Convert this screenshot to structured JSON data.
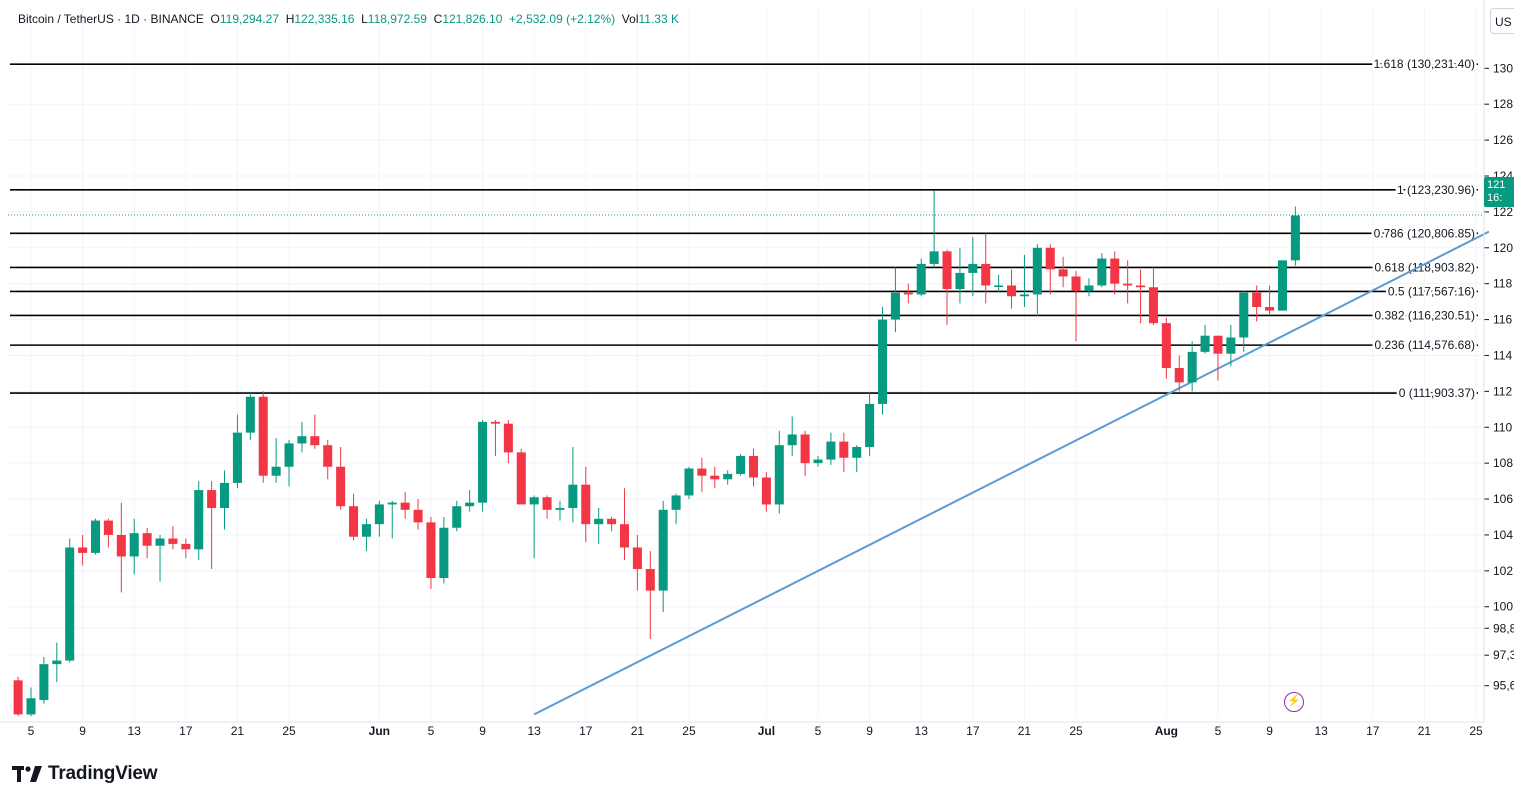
{
  "legend": {
    "symbol": "Bitcoin / TetherUS · 1D · BINANCE",
    "o_label": "O",
    "o_value": "119,294.27",
    "h_label": "H",
    "h_value": "122,335.16",
    "l_label": "L",
    "l_value": "118,972.59",
    "c_label": "C",
    "c_value": "121,826.10",
    "change": "+2,532.09 (+2.12%)",
    "vol_label": "Vol",
    "vol_value": "11.33 K"
  },
  "currency_button": "US",
  "price_tag": {
    "line1": "121",
    "line2": "16:"
  },
  "branding": {
    "name": "TradingView"
  },
  "colors": {
    "up": "#089981",
    "down": "#f23645",
    "trendline": "#5b9bd5",
    "fib_line": "#000000",
    "grid": "#f0f3fa"
  },
  "chart_data": {
    "type": "candlestick",
    "title": "Bitcoin / TetherUS · 1D · BINANCE",
    "xlabel": "",
    "ylabel": "",
    "ylim": [
      93800,
      131800
    ],
    "grid": true,
    "x_ticks": [
      "5",
      "9",
      "13",
      "17",
      "21",
      "25",
      "Jun",
      "5",
      "9",
      "13",
      "17",
      "21",
      "25",
      "Jul",
      "5",
      "9",
      "13",
      "17",
      "21",
      "25",
      "Aug",
      "5",
      "9",
      "13",
      "17",
      "21",
      "25"
    ],
    "y_ticks": [
      "130",
      "128",
      "126",
      "124",
      "122",
      "120",
      "118",
      "116",
      "114",
      "112",
      "110",
      "108",
      "106",
      "104",
      "102",
      "100",
      "98,8",
      "97,3",
      "95,6"
    ],
    "y_tick_values": [
      130000,
      128000,
      126000,
      124000,
      122000,
      120000,
      118000,
      116000,
      114000,
      112000,
      110000,
      108000,
      106000,
      104000,
      102000,
      100000,
      98800,
      97300,
      95600
    ],
    "candles": [
      {
        "date": "2025-05-04",
        "o": 95900,
        "h": 96100,
        "l": 93900,
        "c": 94000
      },
      {
        "date": "2025-05-05",
        "o": 94000,
        "h": 95500,
        "l": 93900,
        "c": 94900
      },
      {
        "date": "2025-05-06",
        "o": 94800,
        "h": 97200,
        "l": 94600,
        "c": 96800
      },
      {
        "date": "2025-05-07",
        "o": 96800,
        "h": 98000,
        "l": 95800,
        "c": 97000
      },
      {
        "date": "2025-05-08",
        "o": 97000,
        "h": 103800,
        "l": 96900,
        "c": 103300
      },
      {
        "date": "2025-05-09",
        "o": 103300,
        "h": 104000,
        "l": 102300,
        "c": 103000
      },
      {
        "date": "2025-05-10",
        "o": 103000,
        "h": 104900,
        "l": 102900,
        "c": 104800
      },
      {
        "date": "2025-05-11",
        "o": 104800,
        "h": 104900,
        "l": 103300,
        "c": 104000
      },
      {
        "date": "2025-05-12",
        "o": 104000,
        "h": 105800,
        "l": 100800,
        "c": 102800
      },
      {
        "date": "2025-05-13",
        "o": 102800,
        "h": 104900,
        "l": 101800,
        "c": 104100
      },
      {
        "date": "2025-05-14",
        "o": 104100,
        "h": 104400,
        "l": 102700,
        "c": 103400
      },
      {
        "date": "2025-05-15",
        "o": 103400,
        "h": 104000,
        "l": 101400,
        "c": 103800
      },
      {
        "date": "2025-05-16",
        "o": 103800,
        "h": 104500,
        "l": 103200,
        "c": 103500
      },
      {
        "date": "2025-05-17",
        "o": 103500,
        "h": 103800,
        "l": 102700,
        "c": 103200
      },
      {
        "date": "2025-05-18",
        "o": 103200,
        "h": 107000,
        "l": 102600,
        "c": 106500
      },
      {
        "date": "2025-05-19",
        "o": 106500,
        "h": 107000,
        "l": 102100,
        "c": 105500
      },
      {
        "date": "2025-05-20",
        "o": 105500,
        "h": 107600,
        "l": 104300,
        "c": 106900
      },
      {
        "date": "2025-05-21",
        "o": 106900,
        "h": 110700,
        "l": 106600,
        "c": 109700
      },
      {
        "date": "2025-05-22",
        "o": 109700,
        "h": 111900,
        "l": 109300,
        "c": 111700
      },
      {
        "date": "2025-05-23",
        "o": 111700,
        "h": 112000,
        "l": 106900,
        "c": 107300
      },
      {
        "date": "2025-05-24",
        "o": 107300,
        "h": 109400,
        "l": 106900,
        "c": 107800
      },
      {
        "date": "2025-05-25",
        "o": 107800,
        "h": 109300,
        "l": 106700,
        "c": 109100
      },
      {
        "date": "2025-05-26",
        "o": 109100,
        "h": 110300,
        "l": 108600,
        "c": 109500
      },
      {
        "date": "2025-05-27",
        "o": 109500,
        "h": 110700,
        "l": 108800,
        "c": 109000
      },
      {
        "date": "2025-05-28",
        "o": 109000,
        "h": 109300,
        "l": 107100,
        "c": 107800
      },
      {
        "date": "2025-05-29",
        "o": 107800,
        "h": 108900,
        "l": 105400,
        "c": 105600
      },
      {
        "date": "2025-05-30",
        "o": 105600,
        "h": 106300,
        "l": 103700,
        "c": 103900
      },
      {
        "date": "2025-05-31",
        "o": 103900,
        "h": 104900,
        "l": 103100,
        "c": 104600
      },
      {
        "date": "2025-06-01",
        "o": 104600,
        "h": 105900,
        "l": 103900,
        "c": 105700
      },
      {
        "date": "2025-06-02",
        "o": 105700,
        "h": 105900,
        "l": 103800,
        "c": 105800
      },
      {
        "date": "2025-06-03",
        "o": 105800,
        "h": 106400,
        "l": 104900,
        "c": 105400
      },
      {
        "date": "2025-06-04",
        "o": 105400,
        "h": 106000,
        "l": 104300,
        "c": 104700
      },
      {
        "date": "2025-06-05",
        "o": 104700,
        "h": 105000,
        "l": 101000,
        "c": 101600
      },
      {
        "date": "2025-06-06",
        "o": 101600,
        "h": 105000,
        "l": 101300,
        "c": 104400
      },
      {
        "date": "2025-06-07",
        "o": 104400,
        "h": 105900,
        "l": 104200,
        "c": 105600
      },
      {
        "date": "2025-06-08",
        "o": 105600,
        "h": 106500,
        "l": 105300,
        "c": 105800
      },
      {
        "date": "2025-06-09",
        "o": 105800,
        "h": 110400,
        "l": 105300,
        "c": 110300
      },
      {
        "date": "2025-06-10",
        "o": 110300,
        "h": 110400,
        "l": 108400,
        "c": 110200
      },
      {
        "date": "2025-06-11",
        "o": 110200,
        "h": 110400,
        "l": 108000,
        "c": 108600
      },
      {
        "date": "2025-06-12",
        "o": 108600,
        "h": 108800,
        "l": 105700,
        "c": 105700
      },
      {
        "date": "2025-06-13",
        "o": 105700,
        "h": 106200,
        "l": 102700,
        "c": 106100
      },
      {
        "date": "2025-06-14",
        "o": 106100,
        "h": 106200,
        "l": 104900,
        "c": 105400
      },
      {
        "date": "2025-06-15",
        "o": 105400,
        "h": 105900,
        "l": 104800,
        "c": 105500
      },
      {
        "date": "2025-06-16",
        "o": 105500,
        "h": 108900,
        "l": 104700,
        "c": 106800
      },
      {
        "date": "2025-06-17",
        "o": 106800,
        "h": 107800,
        "l": 103600,
        "c": 104600
      },
      {
        "date": "2025-06-18",
        "o": 104600,
        "h": 105500,
        "l": 103500,
        "c": 104900
      },
      {
        "date": "2025-06-19",
        "o": 104900,
        "h": 105000,
        "l": 104200,
        "c": 104600
      },
      {
        "date": "2025-06-20",
        "o": 104600,
        "h": 106600,
        "l": 102600,
        "c": 103300
      },
      {
        "date": "2025-06-21",
        "o": 103300,
        "h": 104000,
        "l": 100900,
        "c": 102100
      },
      {
        "date": "2025-06-22",
        "o": 102100,
        "h": 103100,
        "l": 98200,
        "c": 100900
      },
      {
        "date": "2025-06-23",
        "o": 100900,
        "h": 105900,
        "l": 99700,
        "c": 105400
      },
      {
        "date": "2025-06-24",
        "o": 105400,
        "h": 106300,
        "l": 104600,
        "c": 106200
      },
      {
        "date": "2025-06-25",
        "o": 106200,
        "h": 107800,
        "l": 106000,
        "c": 107700
      },
      {
        "date": "2025-06-26",
        "o": 107700,
        "h": 108300,
        "l": 106400,
        "c": 107300
      },
      {
        "date": "2025-06-27",
        "o": 107300,
        "h": 107800,
        "l": 106600,
        "c": 107100
      },
      {
        "date": "2025-06-28",
        "o": 107100,
        "h": 107600,
        "l": 106800,
        "c": 107400
      },
      {
        "date": "2025-06-29",
        "o": 107400,
        "h": 108500,
        "l": 107300,
        "c": 108400
      },
      {
        "date": "2025-06-30",
        "o": 108400,
        "h": 108800,
        "l": 106700,
        "c": 107200
      },
      {
        "date": "2025-07-01",
        "o": 107200,
        "h": 107500,
        "l": 105300,
        "c": 105700
      },
      {
        "date": "2025-07-02",
        "o": 105700,
        "h": 109800,
        "l": 105200,
        "c": 109000
      },
      {
        "date": "2025-07-03",
        "o": 109000,
        "h": 110600,
        "l": 108400,
        "c": 109600
      },
      {
        "date": "2025-07-04",
        "o": 109600,
        "h": 109800,
        "l": 107300,
        "c": 108000
      },
      {
        "date": "2025-07-05",
        "o": 108000,
        "h": 108400,
        "l": 107800,
        "c": 108200
      },
      {
        "date": "2025-07-06",
        "o": 108200,
        "h": 109700,
        "l": 107900,
        "c": 109200
      },
      {
        "date": "2025-07-07",
        "o": 109200,
        "h": 109700,
        "l": 107500,
        "c": 108300
      },
      {
        "date": "2025-07-08",
        "o": 108300,
        "h": 109000,
        "l": 107500,
        "c": 108900
      },
      {
        "date": "2025-07-09",
        "o": 108900,
        "h": 111900,
        "l": 108400,
        "c": 111300
      },
      {
        "date": "2025-07-10",
        "o": 111300,
        "h": 116700,
        "l": 110700,
        "c": 116000
      },
      {
        "date": "2025-07-11",
        "o": 116000,
        "h": 118900,
        "l": 115300,
        "c": 117500
      },
      {
        "date": "2025-07-12",
        "o": 117500,
        "h": 118000,
        "l": 116900,
        "c": 117400
      },
      {
        "date": "2025-07-13",
        "o": 117400,
        "h": 119400,
        "l": 117300,
        "c": 119100
      },
      {
        "date": "2025-07-14",
        "o": 119100,
        "h": 123200,
        "l": 118900,
        "c": 119800
      },
      {
        "date": "2025-07-15",
        "o": 119800,
        "h": 119900,
        "l": 115700,
        "c": 117700
      },
      {
        "date": "2025-07-16",
        "o": 117700,
        "h": 120000,
        "l": 116900,
        "c": 118600
      },
      {
        "date": "2025-07-17",
        "o": 118600,
        "h": 120600,
        "l": 117300,
        "c": 119100
      },
      {
        "date": "2025-07-18",
        "o": 119100,
        "h": 120800,
        "l": 116900,
        "c": 117900
      },
      {
        "date": "2025-07-19",
        "o": 117900,
        "h": 118500,
        "l": 117500,
        "c": 117900
      },
      {
        "date": "2025-07-20",
        "o": 117900,
        "h": 118800,
        "l": 116600,
        "c": 117300
      },
      {
        "date": "2025-07-21",
        "o": 117300,
        "h": 119600,
        "l": 116700,
        "c": 117400
      },
      {
        "date": "2025-07-22",
        "o": 117400,
        "h": 120200,
        "l": 116200,
        "c": 120000
      },
      {
        "date": "2025-07-23",
        "o": 120000,
        "h": 120200,
        "l": 117400,
        "c": 118800
      },
      {
        "date": "2025-07-24",
        "o": 118800,
        "h": 119500,
        "l": 117800,
        "c": 118400
      },
      {
        "date": "2025-07-25",
        "o": 118400,
        "h": 118700,
        "l": 114800,
        "c": 117600
      },
      {
        "date": "2025-07-26",
        "o": 117600,
        "h": 118300,
        "l": 117300,
        "c": 117900
      },
      {
        "date": "2025-07-27",
        "o": 117900,
        "h": 119700,
        "l": 117800,
        "c": 119400
      },
      {
        "date": "2025-07-28",
        "o": 119400,
        "h": 119800,
        "l": 117400,
        "c": 118000
      },
      {
        "date": "2025-07-29",
        "o": 118000,
        "h": 119300,
        "l": 116900,
        "c": 117900
      },
      {
        "date": "2025-07-30",
        "o": 117900,
        "h": 118800,
        "l": 115800,
        "c": 117800
      },
      {
        "date": "2025-07-31",
        "o": 117800,
        "h": 118900,
        "l": 115700,
        "c": 115800
      },
      {
        "date": "2025-08-01",
        "o": 115800,
        "h": 116100,
        "l": 112700,
        "c": 113300
      },
      {
        "date": "2025-08-02",
        "o": 113300,
        "h": 114000,
        "l": 112000,
        "c": 112500
      },
      {
        "date": "2025-08-03",
        "o": 112500,
        "h": 114800,
        "l": 112000,
        "c": 114200
      },
      {
        "date": "2025-08-04",
        "o": 114200,
        "h": 115700,
        "l": 114100,
        "c": 115100
      },
      {
        "date": "2025-08-05",
        "o": 115100,
        "h": 115100,
        "l": 112600,
        "c": 114100
      },
      {
        "date": "2025-08-06",
        "o": 114100,
        "h": 115700,
        "l": 113400,
        "c": 115000
      },
      {
        "date": "2025-08-07",
        "o": 115000,
        "h": 117600,
        "l": 114200,
        "c": 117500
      },
      {
        "date": "2025-08-08",
        "o": 117500,
        "h": 117900,
        "l": 115900,
        "c": 116700
      },
      {
        "date": "2025-08-09",
        "o": 116700,
        "h": 117900,
        "l": 116300,
        "c": 116500
      },
      {
        "date": "2025-08-10",
        "o": 116500,
        "h": 119300,
        "l": 116500,
        "c": 119300
      },
      {
        "date": "2025-08-11",
        "o": 119300,
        "h": 122300,
        "l": 119000,
        "c": 121800
      }
    ],
    "fib_levels": [
      {
        "label": "1.618 (130,231.40)",
        "value": 130231.4
      },
      {
        "label": "1 (123,230.96)",
        "value": 123230.96
      },
      {
        "label": "0.786 (120,806.85)",
        "value": 120806.85
      },
      {
        "label": "0.618 (118,903.82)",
        "value": 118903.82
      },
      {
        "label": "0.5 (117,567.16)",
        "value": 117567.16
      },
      {
        "label": "0.382 (116,230.51)",
        "value": 116230.51
      },
      {
        "label": "0.236 (114,576.68)",
        "value": 114576.68
      },
      {
        "label": "0 (111,903.37)",
        "value": 111903.37
      }
    ],
    "trendline": {
      "start": {
        "date": "2025-06-13",
        "value": 94000
      },
      "end": {
        "date": "2025-08-26",
        "value": 120900
      }
    },
    "current_price": 121826.1
  }
}
